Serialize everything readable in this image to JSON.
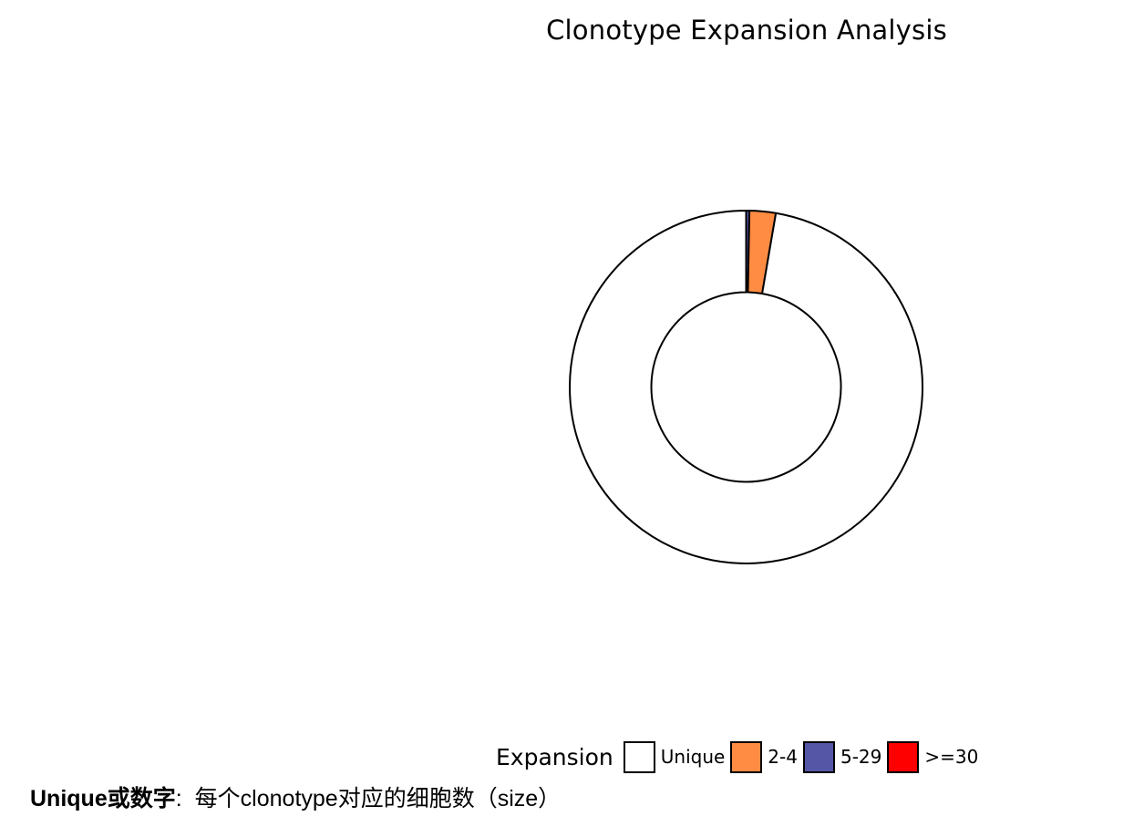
{
  "chart_data": {
    "type": "pie",
    "subtype": "donut",
    "title": "Clonotype Expansion Analysis",
    "legend_title": "Expansion",
    "legend_position": "bottom",
    "categories": [
      "Unique",
      "2-4",
      "5-29",
      ">=30"
    ],
    "values": [
      97.3,
      2.4,
      0.3,
      0.0
    ],
    "colors": [
      "#FFFFFF",
      "#FF8C42",
      "#5656A6",
      "#FF0000"
    ],
    "start_angle_deg": 0,
    "direction": "clockwise",
    "segment_order": [
      ">=30",
      "5-29",
      "2-4",
      "Unique"
    ]
  },
  "footnote": {
    "term": "Unique或数字",
    "separator": ":",
    "text": "每个clonotype对应的细胞数（size）"
  }
}
